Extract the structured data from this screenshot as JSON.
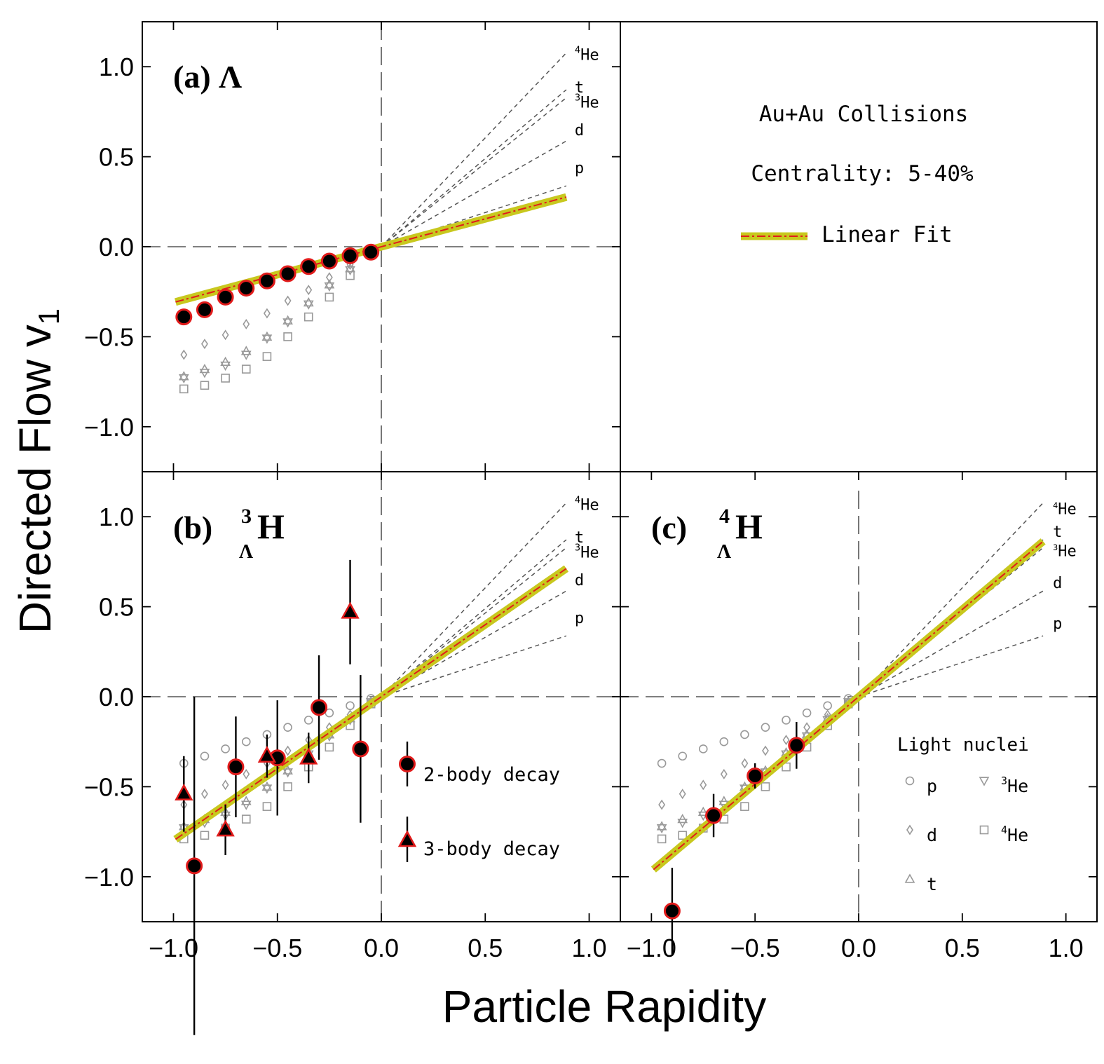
{
  "chart_data": {
    "type": "scatter",
    "xlabel": "Particle Rapidity",
    "ylabel_main": "Directed Flow v",
    "ylabel_sub": "1",
    "xlim": [
      -1.15,
      1.15
    ],
    "ylim": [
      -1.25,
      1.25
    ],
    "x_ticks": [
      -1.0,
      -0.5,
      0.0,
      0.5,
      1.0
    ],
    "x_tick_labels": [
      "−1.0",
      "−0.5",
      "0.0",
      "0.5",
      "1.0"
    ],
    "y_ticks": [
      -1.0,
      -0.5,
      0.0,
      0.5,
      1.0
    ],
    "y_tick_labels": [
      "−1.0",
      "−0.5",
      "0.0",
      "0.5",
      "1.0"
    ],
    "reference_lines": [
      {
        "label": "p",
        "slope": 0.38,
        "sup": ""
      },
      {
        "label": "d",
        "slope": 0.66,
        "sup": ""
      },
      {
        "label": "He",
        "sup": "3",
        "slope": 0.93
      },
      {
        "label": "t",
        "slope": 0.98,
        "sup": ""
      },
      {
        "label": "He",
        "sup": "4",
        "slope": 1.21
      }
    ],
    "light_nuclei_x": [
      -0.95,
      -0.85,
      -0.75,
      -0.65,
      -0.55,
      -0.45,
      -0.35,
      -0.25,
      -0.15,
      -0.05
    ],
    "light_nuclei": [
      {
        "name": "p",
        "marker": "circle",
        "values": [
          -0.37,
          -0.33,
          -0.29,
          -0.25,
          -0.21,
          -0.17,
          -0.13,
          -0.09,
          -0.05,
          -0.01
        ]
      },
      {
        "name": "d",
        "marker": "diamond",
        "values": [
          -0.6,
          -0.54,
          -0.49,
          -0.43,
          -0.37,
          -0.3,
          -0.24,
          -0.17,
          -0.1,
          -0.03
        ]
      },
      {
        "name": "t",
        "marker": "triangle-up",
        "values": [
          -0.72,
          -0.68,
          -0.64,
          -0.58,
          -0.5,
          -0.41,
          -0.31,
          -0.21,
          -0.12,
          -0.03
        ]
      },
      {
        "name": "He",
        "sup": "3",
        "marker": "triangle-down",
        "values": [
          -0.73,
          -0.7,
          -0.66,
          -0.6,
          -0.51,
          -0.42,
          -0.32,
          -0.22,
          -0.13,
          -0.03
        ]
      },
      {
        "name": "He",
        "sup": "4",
        "marker": "square",
        "values": [
          -0.79,
          -0.77,
          -0.73,
          -0.68,
          -0.61,
          -0.5,
          -0.39,
          -0.28,
          -0.16,
          -0.04
        ]
      }
    ],
    "panels": [
      {
        "id": "a",
        "label_prefix": "(a)",
        "label_symbol": "Λ",
        "fit": {
          "slope": 0.31,
          "x_range": [
            -0.99,
            0.89
          ]
        },
        "two_body": {
          "x": [
            -0.95,
            -0.85,
            -0.75,
            -0.65,
            -0.55,
            -0.45,
            -0.35,
            -0.25,
            -0.15,
            -0.05
          ],
          "y": [
            -0.39,
            -0.35,
            -0.28,
            -0.23,
            -0.19,
            -0.15,
            -0.11,
            -0.08,
            -0.05,
            -0.03
          ],
          "err": [
            0,
            0,
            0,
            0,
            0,
            0,
            0,
            0,
            0,
            0
          ]
        },
        "three_body": {
          "x": [],
          "y": [],
          "err": []
        }
      },
      {
        "id": "b",
        "label_prefix": "(b)",
        "label_super": "3",
        "label_sub": "Λ",
        "label_main": "H",
        "fit": {
          "slope": 0.8,
          "x_range": [
            -0.99,
            0.89
          ]
        },
        "two_body": {
          "x": [
            -0.9,
            -0.7,
            -0.5,
            -0.3,
            -0.1
          ],
          "y": [
            -0.94,
            -0.39,
            -0.34,
            -0.06,
            -0.29
          ],
          "err": [
            0.94,
            0.28,
            0.32,
            0.29,
            0.41
          ]
        },
        "three_body": {
          "x": [
            -0.95,
            -0.75,
            -0.55,
            -0.35,
            -0.15
          ],
          "y": [
            -0.54,
            -0.74,
            -0.33,
            -0.34,
            0.47
          ],
          "err": [
            0.21,
            0.14,
            0.12,
            0.14,
            0.29
          ]
        }
      },
      {
        "id": "c",
        "label_prefix": "(c)",
        "label_super": "4",
        "label_sub": "Λ",
        "label_main": "H",
        "fit": {
          "slope": 0.97,
          "x_range": [
            -0.99,
            0.89
          ]
        },
        "two_body": {
          "x": [
            -0.9,
            -0.7,
            -0.5,
            -0.3
          ],
          "y": [
            -1.19,
            -0.66,
            -0.44,
            -0.27
          ],
          "err": [
            0.24,
            0.12,
            0.07,
            0.13
          ]
        },
        "three_body": {
          "x": [],
          "y": [],
          "err": []
        }
      }
    ],
    "info_panel": {
      "line1": "Au+Au Collisions",
      "line2": "Centrality: 5-40%",
      "fit_label": "Linear Fit"
    },
    "legend_b": {
      "two_body": "2-body decay",
      "three_body": "3-body decay"
    },
    "legend_c": {
      "title": "Light nuclei",
      "entries": [
        {
          "name": "p",
          "sup": "",
          "marker": "circle"
        },
        {
          "name": "He",
          "sup": "3",
          "marker": "triangle-down"
        },
        {
          "name": "d",
          "sup": "",
          "marker": "diamond"
        },
        {
          "name": "He",
          "sup": "4",
          "marker": "square"
        },
        {
          "name": "t",
          "sup": "",
          "marker": "triangle-up"
        }
      ]
    }
  }
}
